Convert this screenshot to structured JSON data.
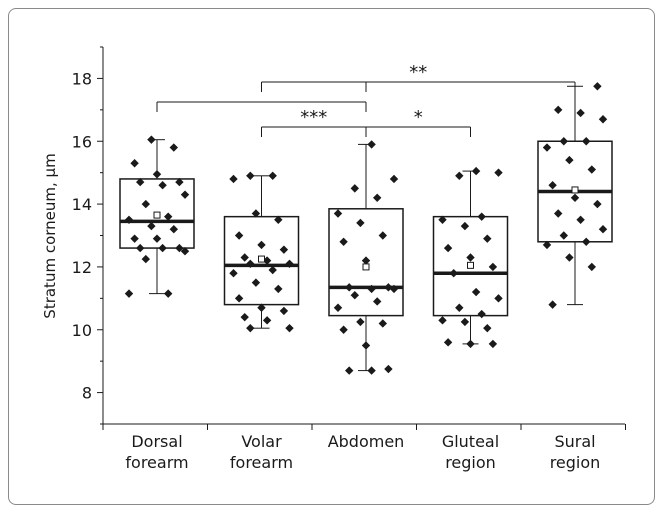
{
  "chart_data": {
    "type": "box",
    "title": "",
    "xlabel": "",
    "ylabel": "Stratum corneum, µm",
    "ylim": [
      7,
      19
    ],
    "yticks": [
      8,
      10,
      12,
      14,
      16,
      18
    ],
    "grid": false,
    "legend": "none",
    "groups": [
      {
        "label": [
          "Dorsal",
          "forearm"
        ],
        "q1": 12.6,
        "median": 13.45,
        "q3": 14.8,
        "whisker_low": 11.15,
        "whisker_high": 16.05,
        "mean": 13.65,
        "points": [
          11.15,
          11.15,
          12.25,
          12.5,
          12.6,
          12.6,
          12.6,
          12.9,
          12.9,
          13.2,
          13.3,
          13.5,
          13.6,
          14.0,
          14.3,
          14.6,
          14.7,
          14.7,
          14.95,
          15.3,
          15.8,
          16.05
        ]
      },
      {
        "label": [
          "Volar",
          "forearm"
        ],
        "q1": 10.8,
        "median": 12.05,
        "q3": 13.6,
        "whisker_low": 10.05,
        "whisker_high": 14.9,
        "mean": 12.25,
        "points": [
          10.05,
          10.05,
          10.3,
          10.4,
          10.6,
          10.7,
          11.0,
          11.3,
          11.5,
          11.8,
          11.9,
          12.1,
          12.1,
          12.2,
          12.3,
          12.55,
          12.7,
          13.0,
          13.5,
          13.7,
          14.8,
          14.9,
          14.9
        ]
      },
      {
        "label": [
          "Abdomen"
        ],
        "q1": 10.45,
        "median": 11.35,
        "q3": 13.85,
        "whisker_low": 8.7,
        "whisker_high": 15.9,
        "mean": 12.0,
        "points": [
          8.7,
          8.7,
          8.75,
          9.5,
          10.0,
          10.2,
          10.25,
          10.7,
          10.9,
          11.1,
          11.3,
          11.3,
          11.35,
          11.35,
          12.2,
          12.8,
          13.0,
          13.4,
          13.7,
          14.2,
          14.5,
          14.8,
          15.9
        ]
      },
      {
        "label": [
          "Gluteal",
          "region"
        ],
        "q1": 10.45,
        "median": 11.8,
        "q3": 13.6,
        "whisker_low": 9.55,
        "whisker_high": 15.05,
        "mean": 12.05,
        "points": [
          9.55,
          9.55,
          9.6,
          10.05,
          10.25,
          10.3,
          10.5,
          10.7,
          11.0,
          11.2,
          11.8,
          12.0,
          12.3,
          12.6,
          12.9,
          13.3,
          13.5,
          13.6,
          14.9,
          15.0,
          15.05
        ]
      },
      {
        "label": [
          "Sural",
          "region"
        ],
        "q1": 12.8,
        "median": 14.4,
        "q3": 16.0,
        "whisker_low": 10.8,
        "whisker_high": 17.75,
        "mean": 14.45,
        "points": [
          10.8,
          12.0,
          12.3,
          12.7,
          12.8,
          13.0,
          13.2,
          13.5,
          13.7,
          14.0,
          14.2,
          14.6,
          15.1,
          15.4,
          15.8,
          16.0,
          16.0,
          16.7,
          16.9,
          17.0,
          17.75
        ]
      }
    ],
    "significance": [
      {
        "from": 1,
        "to": 4,
        "label": "**"
      },
      {
        "from": 0,
        "to": 2,
        "label": ""
      },
      {
        "from": 2,
        "to": 3,
        "label": "*"
      },
      {
        "from": 1,
        "to": 2,
        "label": "***"
      }
    ]
  }
}
